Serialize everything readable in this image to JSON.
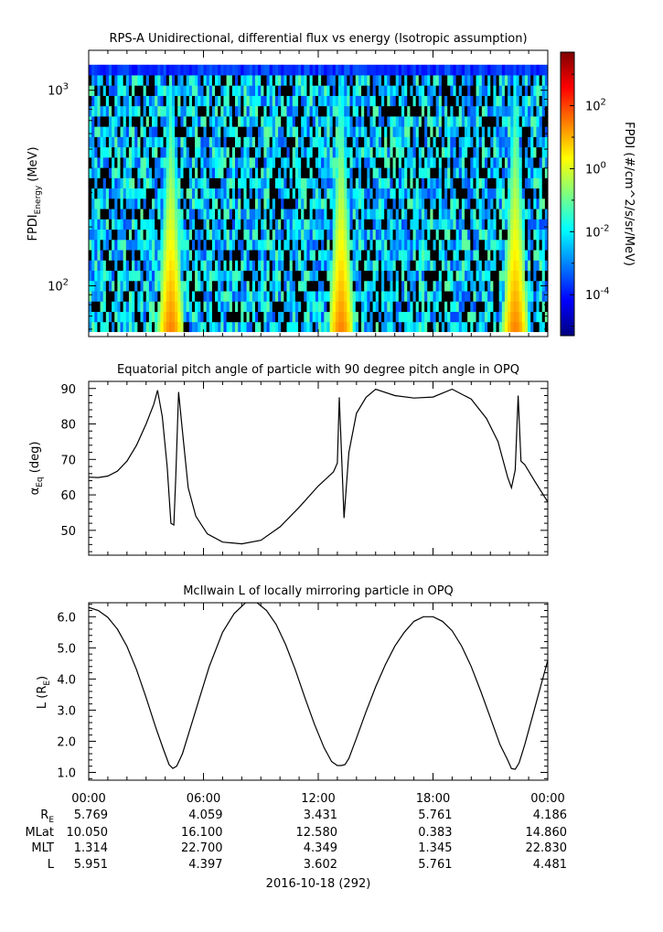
{
  "chart_data": [
    {
      "type": "heatmap",
      "title": "RPS-A Unidirectional, differential flux vs energy (Isotropic assumption)",
      "ylabel_main": "FPDI",
      "ylabel_sub": "Energy",
      "ylabel_unit": " (MeV)",
      "y_scale": "log",
      "ylim": [
        55,
        1600
      ],
      "yticks": [
        {
          "value": 100,
          "base": "10",
          "exp": "2"
        },
        {
          "value": 1000,
          "base": "10",
          "exp": "3"
        }
      ],
      "energy_range_mev": [
        58,
        1350
      ],
      "peak_times_hours": [
        4.1,
        4.5,
        13.1,
        13.3,
        22.1,
        22.5
      ],
      "colorbar": {
        "label": "FPDI (#/cm^2/s/sr/MeV)",
        "scale": "log",
        "range_log10": [
          -5.3,
          3.7
        ],
        "ticks": [
          {
            "value": 2,
            "base": "10",
            "exp": "2"
          },
          {
            "value": 0,
            "base": "10",
            "exp": "0"
          },
          {
            "value": -2,
            "base": "10",
            "exp": "-2"
          },
          {
            "value": -4,
            "base": "10",
            "exp": "-4"
          }
        ],
        "colors": [
          "#00007f",
          "#0000ff",
          "#007fff",
          "#00ffff",
          "#7fff7f",
          "#ffff00",
          "#ff7f00",
          "#ff0000",
          "#7f0000"
        ]
      }
    },
    {
      "type": "line",
      "title": "Equatorial pitch angle of particle with 90 degree pitch angle in OPQ",
      "ylabel_greek": "α",
      "ylabel_sub": "Eq",
      "ylabel_unit": " (deg)",
      "ylim": [
        43,
        92
      ],
      "yticks": [
        50,
        60,
        70,
        80,
        90
      ],
      "series": [
        {
          "x": [
            0,
            0.5,
            1.0,
            1.5,
            2.0,
            2.5,
            3.0,
            3.4,
            3.6,
            3.85,
            4.1,
            4.3,
            4.45,
            4.55,
            4.7,
            4.9,
            5.2,
            5.6,
            6.2,
            7.0,
            8.0,
            9.0,
            10.0,
            11.0,
            12.0,
            12.8,
            13.0,
            13.1,
            13.2,
            13.35,
            13.6,
            14.0,
            14.5,
            15.0,
            16.0,
            17.0,
            18.0,
            19.0,
            20.0,
            20.8,
            21.4,
            21.9,
            22.1,
            22.3,
            22.45,
            22.6,
            22.8,
            23.3,
            24.0
          ],
          "y": [
            65,
            64.9,
            65.3,
            66.7,
            69.5,
            74.0,
            80.0,
            85.5,
            89.5,
            82.0,
            68.0,
            52.0,
            51.5,
            65.0,
            89.0,
            78.0,
            62.0,
            54.0,
            49.0,
            46.7,
            46.2,
            47.2,
            51.0,
            56.5,
            62.5,
            66.5,
            69.0,
            87.5,
            74.0,
            53.5,
            72.0,
            83.0,
            87.5,
            89.8,
            88.0,
            87.3,
            87.6,
            89.8,
            87.0,
            81.5,
            75.0,
            65.0,
            62.0,
            67.0,
            88.0,
            69.5,
            68.5,
            64.0,
            58.0
          ]
        }
      ]
    },
    {
      "type": "line",
      "title": "McIlwain L of locally mirroring particle in OPQ",
      "ylabel_main": "L (R",
      "ylabel_sub": "E",
      "ylabel_close": ")",
      "ylim": [
        0.75,
        6.45
      ],
      "yticks": [
        1,
        2,
        3,
        4,
        5,
        6
      ],
      "series": [
        {
          "x": [
            0,
            0.5,
            1.0,
            1.5,
            2.0,
            2.5,
            3.0,
            3.5,
            3.9,
            4.2,
            4.4,
            4.6,
            4.9,
            5.3,
            5.8,
            6.3,
            7.0,
            7.6,
            8.2,
            8.8,
            9.3,
            9.8,
            10.3,
            10.8,
            11.3,
            11.8,
            12.3,
            12.7,
            13.0,
            13.2,
            13.4,
            13.6,
            14.0,
            14.5,
            15.0,
            15.5,
            16.0,
            16.5,
            17.0,
            17.5,
            18.0,
            18.5,
            19.0,
            19.5,
            20.0,
            20.5,
            21.0,
            21.5,
            21.9,
            22.1,
            22.3,
            22.5,
            22.8,
            23.2,
            23.6,
            24.0
          ],
          "y": [
            6.3,
            6.2,
            5.98,
            5.6,
            5.05,
            4.3,
            3.4,
            2.45,
            1.75,
            1.25,
            1.13,
            1.2,
            1.6,
            2.4,
            3.4,
            4.4,
            5.5,
            6.1,
            6.45,
            6.45,
            6.2,
            5.75,
            5.1,
            4.3,
            3.4,
            2.55,
            1.8,
            1.35,
            1.22,
            1.22,
            1.25,
            1.45,
            2.1,
            2.95,
            3.75,
            4.45,
            5.05,
            5.5,
            5.85,
            6.0,
            6.0,
            5.85,
            5.55,
            5.05,
            4.4,
            3.6,
            2.75,
            1.9,
            1.4,
            1.12,
            1.1,
            1.3,
            1.9,
            2.8,
            3.7,
            4.6
          ]
        }
      ]
    }
  ],
  "time_axis": {
    "tick_labels": [
      "00:00",
      "06:00",
      "12:00",
      "18:00",
      "00:00"
    ],
    "tick_hours": [
      0,
      6,
      12,
      18,
      24
    ],
    "minor_step_hours": 1
  },
  "ephemeris": {
    "row_labels": {
      "re": "R",
      "re_sub": "E",
      "mlat": "MLat",
      "mlt": "MLT",
      "l": "L"
    },
    "columns": [
      {
        "re": "5.769",
        "mlat": "10.050",
        "mlt": "1.314",
        "l": "5.951"
      },
      {
        "re": "4.059",
        "mlat": "16.100",
        "mlt": "22.700",
        "l": "4.397"
      },
      {
        "re": "3.431",
        "mlat": "12.580",
        "mlt": "4.349",
        "l": "3.602"
      },
      {
        "re": "5.761",
        "mlat": "0.383",
        "mlt": "1.345",
        "l": "5.761"
      },
      {
        "re": "4.186",
        "mlat": "14.860",
        "mlt": "22.830",
        "l": "4.481"
      }
    ]
  },
  "date_label": "2016-10-18 (292)"
}
